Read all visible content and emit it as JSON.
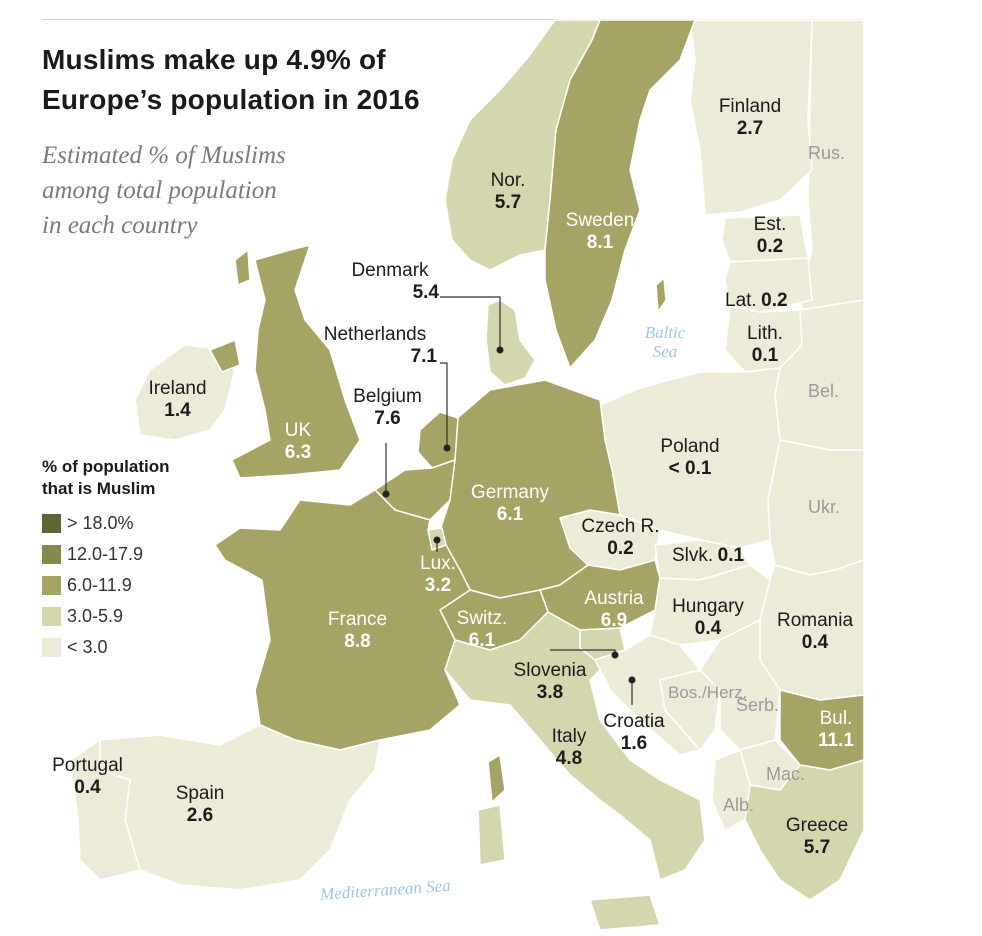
{
  "title_line1": "Muslims make up 4.9% of",
  "title_line2": "Europe’s population in 2016",
  "subtitle_line1": "Estimated % of Muslims",
  "subtitle_line2": "among total population",
  "subtitle_line3": "in each country",
  "legend": {
    "title_line1": "% of population",
    "title_line2": "that is Muslim",
    "items": [
      {
        "label": "> 18.0%",
        "color": "#5e6634"
      },
      {
        "label": "12.0-17.9",
        "color": "#848a4a"
      },
      {
        "label": "6.0-11.9",
        "color": "#a5a465"
      },
      {
        "label": "3.0-5.9",
        "color": "#d4d6ae"
      },
      {
        "label": "< 3.0",
        "color": "#ecebd8"
      }
    ]
  },
  "colors": {
    "sea": "#ffffff",
    "border": "#ffffff",
    "cat_6_12": "#a5a465",
    "cat_3_6": "#d4d6ae",
    "cat_lt3": "#ecebd8",
    "sea_label": "#9ec7e6"
  },
  "countries": {
    "finland": {
      "name": "Finland",
      "value": "2.7"
    },
    "norway": {
      "name": "Nor.",
      "value": "5.7"
    },
    "sweden": {
      "name": "Sweden",
      "value": "8.1"
    },
    "estonia": {
      "name": "Est.",
      "value": "0.2"
    },
    "latvia": {
      "name": "Lat.",
      "value": "0.2"
    },
    "lithuania": {
      "name": "Lith.",
      "value": "0.1"
    },
    "denmark": {
      "name": "Denmark",
      "value": "5.4"
    },
    "netherlands": {
      "name": "Netherlands",
      "value": "7.1"
    },
    "belgium": {
      "name": "Belgium",
      "value": "7.6"
    },
    "ireland": {
      "name": "Ireland",
      "value": "1.4"
    },
    "uk": {
      "name": "UK",
      "value": "6.3"
    },
    "germany": {
      "name": "Germany",
      "value": "6.1"
    },
    "poland": {
      "name": "Poland",
      "value": "< 0.1"
    },
    "czech": {
      "name": "Czech R.",
      "value": "0.2"
    },
    "slovakia": {
      "name": "Slvk.",
      "value": "0.1"
    },
    "luxembourg": {
      "name": "Lux.",
      "value": "3.2"
    },
    "france": {
      "name": "France",
      "value": "8.8"
    },
    "switzerland": {
      "name": "Switz.",
      "value": "6.1"
    },
    "austria": {
      "name": "Austria",
      "value": "6.9"
    },
    "hungary": {
      "name": "Hungary",
      "value": "0.4"
    },
    "romania": {
      "name": "Romania",
      "value": "0.4"
    },
    "slovenia": {
      "name": "Slovenia",
      "value": "3.8"
    },
    "croatia": {
      "name": "Croatia",
      "value": "1.6"
    },
    "italy": {
      "name": "Italy",
      "value": "4.8"
    },
    "bulgaria": {
      "name": "Bul.",
      "value": "11.1"
    },
    "greece": {
      "name": "Greece",
      "value": "5.7"
    },
    "portugal": {
      "name": "Portugal",
      "value": "0.4"
    },
    "spain": {
      "name": "Spain",
      "value": "2.6"
    }
  },
  "unlabeled_countries": {
    "russia": "Rus.",
    "belarus": "Bel.",
    "ukraine": "Ukr.",
    "bosnia": "Bos./Herz.",
    "serbia": "Serb.",
    "macedonia": "Mac.",
    "albania": "Alb."
  },
  "seas": {
    "baltic_line1": "Baltic",
    "baltic_line2": "Sea",
    "mediterranean": "Mediterranean Sea"
  }
}
